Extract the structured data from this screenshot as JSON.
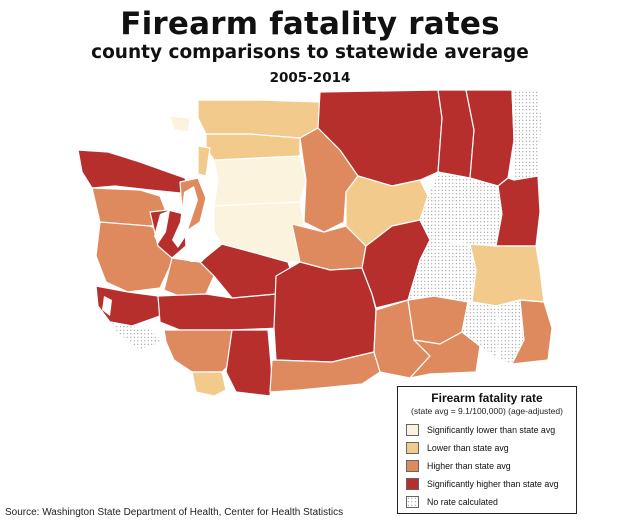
{
  "header": {
    "title": "Firearm fatality rates",
    "subtitle": "county comparisons to statewide average",
    "period": "2005-2014"
  },
  "legend": {
    "title": "Firearm fatality rate",
    "note": "(state avg = 9.1/100,000) (age-adjusted)",
    "items": [
      {
        "label": "Significantly lower than state avg",
        "color": "#fbf3dd"
      },
      {
        "label": "Lower than state avg",
        "color": "#f2ca8c"
      },
      {
        "label": "Higher than state avg",
        "color": "#df8a5e"
      },
      {
        "label": "Significantly higher than state avg",
        "color": "#b72f2d"
      },
      {
        "label": "No rate calculated",
        "color": "#ffffff",
        "pattern": "dots"
      }
    ]
  },
  "source": "Source: Washington State Department of Health, Center for Health Statistics"
}
